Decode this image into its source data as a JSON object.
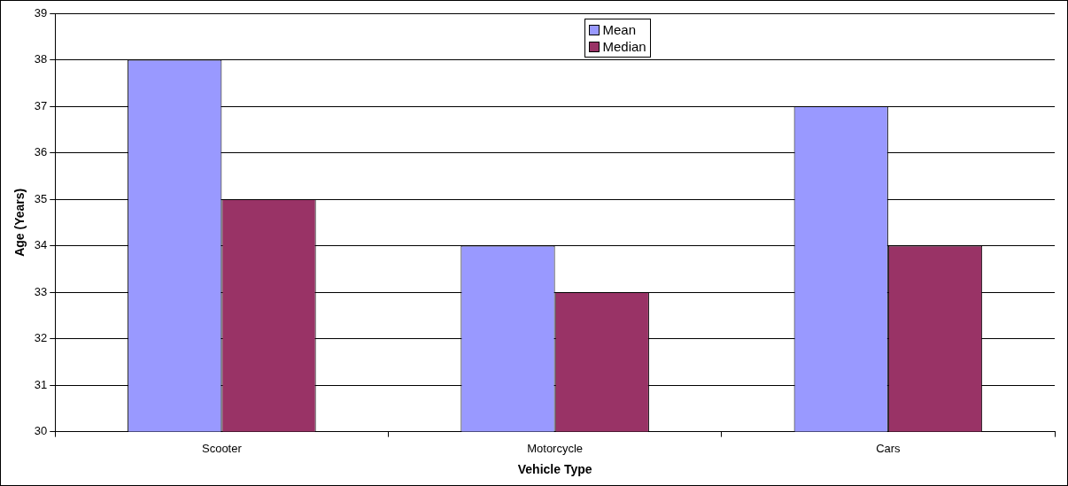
{
  "chart_data": {
    "type": "bar",
    "xlabel": "Vehicle Type",
    "ylabel": "Age (Years)",
    "categories": [
      "Scooter",
      "Motorcycle",
      "Cars"
    ],
    "series": [
      {
        "name": "Mean",
        "color": "#9999ff",
        "values": [
          38,
          34,
          37
        ]
      },
      {
        "name": "Median",
        "color": "#993366",
        "values": [
          35,
          33,
          34
        ]
      }
    ],
    "ylim": [
      30,
      39
    ],
    "yticks": [
      30,
      31,
      32,
      33,
      34,
      35,
      36,
      37,
      38,
      39
    ],
    "grid": "y",
    "legend": "top"
  }
}
